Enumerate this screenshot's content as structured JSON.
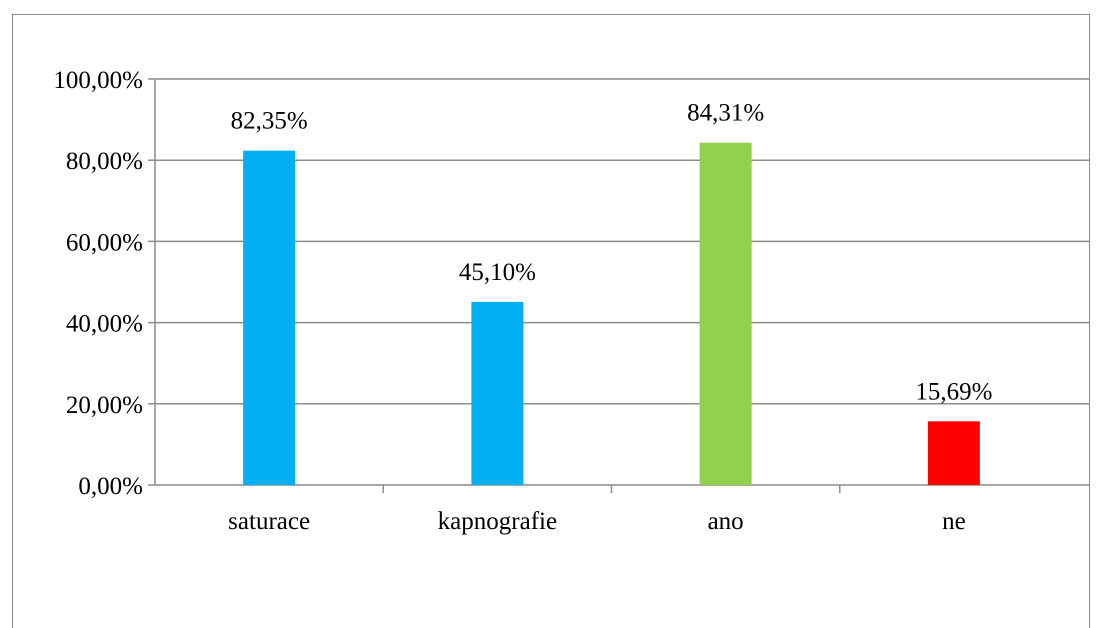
{
  "chart_data": {
    "type": "bar",
    "categories": [
      "saturace",
      "kapnografie",
      "ano",
      "ne"
    ],
    "values": [
      82.35,
      45.1,
      84.31,
      15.69
    ],
    "data_labels": [
      "82,35%",
      "45,10%",
      "84,31%",
      "15,69%"
    ],
    "bar_colors": [
      "#00b0f0",
      "#00b0f0",
      "#92d050",
      "#ff0000"
    ],
    "title": "",
    "xlabel": "",
    "ylabel": "",
    "ylim": [
      0,
      100
    ],
    "yticks": [
      0,
      20,
      40,
      60,
      80,
      100
    ],
    "ytick_labels": [
      "0,00%",
      "20,00%",
      "40,00%",
      "60,00%",
      "80,00%",
      "100,00%"
    ],
    "grid": true,
    "legend": "none",
    "colors": {
      "gridline": "#8c8c8c",
      "axis": "#8c8c8c",
      "text": "#000000"
    }
  }
}
